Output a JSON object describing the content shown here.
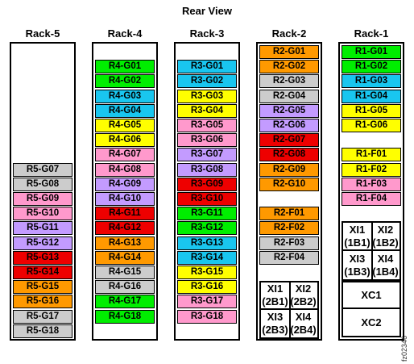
{
  "view_title": "Rear View",
  "figure_id": "fz02346",
  "colors": {
    "green": "#00ee00",
    "cyan": "#19c6ef",
    "yellow": "#ffff00",
    "pink": "#ff99cc",
    "purple": "#c39bff",
    "gray": "#cccccc",
    "red": "#ee0000",
    "orange": "#ff9900",
    "white": "#ffffff"
  },
  "racks": [
    {
      "label": "Rack-5",
      "slots": [
        {
          "pos": 8,
          "label": "R5-G07",
          "color": "gray"
        },
        {
          "pos": 9,
          "label": "R5-G08",
          "color": "gray"
        },
        {
          "pos": 10,
          "label": "R5-G09",
          "color": "pink"
        },
        {
          "pos": 11,
          "label": "R5-G10",
          "color": "pink"
        },
        {
          "pos": 12,
          "label": "R5-G11",
          "color": "purple"
        },
        {
          "pos": 13,
          "label": "R5-G12",
          "color": "purple"
        },
        {
          "pos": 14,
          "label": "R5-G13",
          "color": "red"
        },
        {
          "pos": 15,
          "label": "R5-G14",
          "color": "red"
        },
        {
          "pos": 16,
          "label": "R5-G15",
          "color": "orange"
        },
        {
          "pos": 17,
          "label": "R5-G16",
          "color": "orange"
        },
        {
          "pos": 18,
          "label": "R5-G17",
          "color": "gray"
        },
        {
          "pos": 19,
          "label": "R5-G18",
          "color": "gray"
        }
      ]
    },
    {
      "label": "Rack-4",
      "slots": [
        {
          "pos": 1,
          "label": "R4-G01",
          "color": "green"
        },
        {
          "pos": 2,
          "label": "R4-G02",
          "color": "green"
        },
        {
          "pos": 3,
          "label": "R4-G03",
          "color": "cyan"
        },
        {
          "pos": 4,
          "label": "R4-G04",
          "color": "cyan"
        },
        {
          "pos": 5,
          "label": "R4-G05",
          "color": "yellow"
        },
        {
          "pos": 6,
          "label": "R4-G06",
          "color": "yellow"
        },
        {
          "pos": 7,
          "label": "R4-G07",
          "color": "pink"
        },
        {
          "pos": 8,
          "label": "R4-G08",
          "color": "pink"
        },
        {
          "pos": 9,
          "label": "R4-G09",
          "color": "purple"
        },
        {
          "pos": 10,
          "label": "R4-G10",
          "color": "purple"
        },
        {
          "pos": 11,
          "label": "R4-G11",
          "color": "red"
        },
        {
          "pos": 12,
          "label": "R4-G12",
          "color": "red"
        },
        {
          "pos": 13,
          "label": "R4-G13",
          "color": "orange"
        },
        {
          "pos": 14,
          "label": "R4-G14",
          "color": "orange"
        },
        {
          "pos": 15,
          "label": "R4-G15",
          "color": "gray"
        },
        {
          "pos": 16,
          "label": "R4-G16",
          "color": "gray"
        },
        {
          "pos": 17,
          "label": "R4-G17",
          "color": "green"
        },
        {
          "pos": 18,
          "label": "R4-G18",
          "color": "green"
        }
      ]
    },
    {
      "label": "Rack-3",
      "slots": [
        {
          "pos": 1,
          "label": "R3-G01",
          "color": "cyan"
        },
        {
          "pos": 2,
          "label": "R3-G02",
          "color": "cyan"
        },
        {
          "pos": 3,
          "label": "R3-G03",
          "color": "yellow"
        },
        {
          "pos": 4,
          "label": "R3-G04",
          "color": "yellow"
        },
        {
          "pos": 5,
          "label": "R3-G05",
          "color": "pink"
        },
        {
          "pos": 6,
          "label": "R3-G06",
          "color": "pink"
        },
        {
          "pos": 7,
          "label": "R3-G07",
          "color": "purple"
        },
        {
          "pos": 8,
          "label": "R3-G08",
          "color": "purple"
        },
        {
          "pos": 9,
          "label": "R3-G09",
          "color": "red"
        },
        {
          "pos": 10,
          "label": "R3-G10",
          "color": "red"
        },
        {
          "pos": 11,
          "label": "R3-G11",
          "color": "green"
        },
        {
          "pos": 12,
          "label": "R3-G12",
          "color": "green"
        },
        {
          "pos": 13,
          "label": "R3-G13",
          "color": "cyan"
        },
        {
          "pos": 14,
          "label": "R3-G14",
          "color": "cyan"
        },
        {
          "pos": 15,
          "label": "R3-G15",
          "color": "yellow"
        },
        {
          "pos": 16,
          "label": "R3-G16",
          "color": "yellow"
        },
        {
          "pos": 17,
          "label": "R3-G17",
          "color": "pink"
        },
        {
          "pos": 18,
          "label": "R3-G18",
          "color": "pink"
        }
      ]
    },
    {
      "label": "Rack-2",
      "slots": [
        {
          "pos": 0,
          "label": "R2-G01",
          "color": "orange"
        },
        {
          "pos": 1,
          "label": "R2-G02",
          "color": "orange"
        },
        {
          "pos": 2,
          "label": "R2-G03",
          "color": "gray"
        },
        {
          "pos": 3,
          "label": "R2-G04",
          "color": "gray"
        },
        {
          "pos": 4,
          "label": "R2-G05",
          "color": "purple"
        },
        {
          "pos": 5,
          "label": "R2-G06",
          "color": "purple"
        },
        {
          "pos": 6,
          "label": "R2-G07",
          "color": "red"
        },
        {
          "pos": 7,
          "label": "R2-G08",
          "color": "red"
        },
        {
          "pos": 8,
          "label": "R2-G09",
          "color": "orange"
        },
        {
          "pos": 9,
          "label": "R2-G10",
          "color": "orange"
        },
        {
          "pos": 11,
          "label": "R2-F01",
          "color": "orange"
        },
        {
          "pos": 12,
          "label": "R2-F02",
          "color": "orange"
        },
        {
          "pos": 13,
          "label": "R2-F03",
          "color": "gray"
        },
        {
          "pos": 14,
          "label": "R2-F04",
          "color": "gray"
        }
      ],
      "xi_block": [
        {
          "left": {
            "a": "XI1",
            "b": "(2B1)"
          },
          "right": {
            "a": "XI2",
            "b": "(2B2)"
          }
        },
        {
          "left": {
            "a": "XI3",
            "b": "(2B3)"
          },
          "right": {
            "a": "XI4",
            "b": "(2B4)"
          }
        }
      ]
    },
    {
      "label": "Rack-1",
      "slots": [
        {
          "pos": 0,
          "label": "R1-G01",
          "color": "green"
        },
        {
          "pos": 1,
          "label": "R1-G02",
          "color": "green"
        },
        {
          "pos": 2,
          "label": "R1-G03",
          "color": "cyan"
        },
        {
          "pos": 3,
          "label": "R1-G04",
          "color": "cyan"
        },
        {
          "pos": 4,
          "label": "R1-G05",
          "color": "yellow"
        },
        {
          "pos": 5,
          "label": "R1-G06",
          "color": "yellow"
        },
        {
          "pos": 7,
          "label": "R1-F01",
          "color": "yellow"
        },
        {
          "pos": 8,
          "label": "R1-F02",
          "color": "yellow"
        },
        {
          "pos": 9,
          "label": "R1-F03",
          "color": "pink"
        },
        {
          "pos": 10,
          "label": "R1-F04",
          "color": "pink"
        }
      ],
      "xi_block": [
        {
          "left": {
            "a": "XI1",
            "b": "(1B1)"
          },
          "right": {
            "a": "XI2",
            "b": "(1B2)"
          }
        },
        {
          "left": {
            "a": "XI3",
            "b": "(1B3)"
          },
          "right": {
            "a": "XI4",
            "b": "(1B4)"
          }
        }
      ],
      "xc_block": [
        "XC1",
        "XC2"
      ]
    }
  ]
}
